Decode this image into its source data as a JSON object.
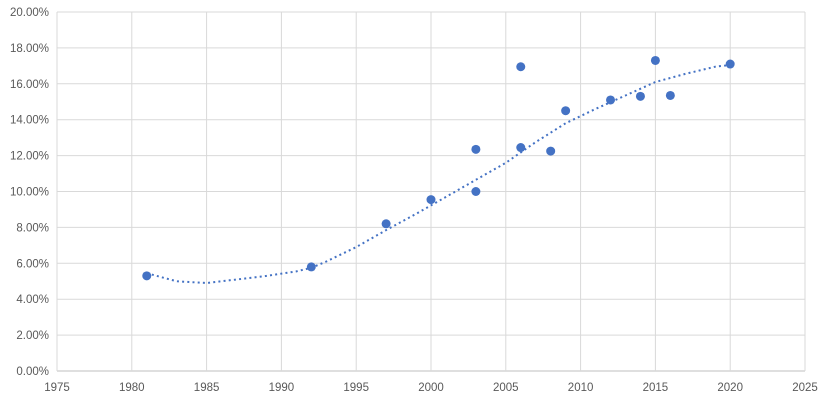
{
  "chart_data": {
    "type": "scatter",
    "title": "",
    "xlabel": "",
    "ylabel": "",
    "grid": true,
    "legend": false,
    "x_axis": {
      "min": 1975,
      "max": 2025,
      "tick_step": 5,
      "tick_labels": [
        "1975",
        "1980",
        "1985",
        "1990",
        "1995",
        "2000",
        "2005",
        "2010",
        "2015",
        "2020",
        "2025"
      ]
    },
    "y_axis": {
      "min_percent": 0,
      "max_percent": 20,
      "tick_step_percent": 2,
      "tick_labels_top_to_bottom": [
        "20.00%",
        "18.00%",
        "16.00%",
        "14.00%",
        "12.00%",
        "10.00%",
        "8.00%",
        "6.00%",
        "4.00%",
        "2.00%",
        "0.00%"
      ]
    },
    "series": [
      {
        "name": "scatter-points",
        "marker": "circle",
        "points": [
          {
            "x": 1981,
            "y": 5.3
          },
          {
            "x": 1992,
            "y": 5.8
          },
          {
            "x": 1997,
            "y": 8.2
          },
          {
            "x": 2000,
            "y": 9.55
          },
          {
            "x": 2003,
            "y": 10.0
          },
          {
            "x": 2003,
            "y": 12.35
          },
          {
            "x": 2006,
            "y": 12.45
          },
          {
            "x": 2006,
            "y": 16.95
          },
          {
            "x": 2008,
            "y": 12.25
          },
          {
            "x": 2009,
            "y": 14.5
          },
          {
            "x": 2012,
            "y": 15.1
          },
          {
            "x": 2014,
            "y": 15.3
          },
          {
            "x": 2015,
            "y": 17.3
          },
          {
            "x": 2016,
            "y": 15.35
          },
          {
            "x": 2020,
            "y": 17.1
          }
        ]
      }
    ],
    "trendline": {
      "style": "dotted",
      "x_start": 1981,
      "x_end": 2020,
      "samples": [
        {
          "x": 1981,
          "y": 5.45
        },
        {
          "x": 1983,
          "y": 5.0
        },
        {
          "x": 1985,
          "y": 4.9
        },
        {
          "x": 1987,
          "y": 5.1
        },
        {
          "x": 1989,
          "y": 5.3
        },
        {
          "x": 1991,
          "y": 5.55
        },
        {
          "x": 1992,
          "y": 5.75
        },
        {
          "x": 1993,
          "y": 6.1
        },
        {
          "x": 1995,
          "y": 6.9
        },
        {
          "x": 1997,
          "y": 7.85
        },
        {
          "x": 1999,
          "y": 8.75
        },
        {
          "x": 2001,
          "y": 9.7
        },
        {
          "x": 2003,
          "y": 10.65
        },
        {
          "x": 2005,
          "y": 11.6
        },
        {
          "x": 2007,
          "y": 12.75
        },
        {
          "x": 2009,
          "y": 13.8
        },
        {
          "x": 2011,
          "y": 14.6
        },
        {
          "x": 2013,
          "y": 15.35
        },
        {
          "x": 2015,
          "y": 16.1
        },
        {
          "x": 2017,
          "y": 16.55
        },
        {
          "x": 2019,
          "y": 16.95
        },
        {
          "x": 2020,
          "y": 17.05
        }
      ]
    },
    "colors": {
      "marker": "#4472C4",
      "trendline": "#4472C4",
      "gridline": "#D9D9D9",
      "axis_line": "#BFBFBF",
      "axis_text": "#595959",
      "background": "#FFFFFF"
    }
  }
}
